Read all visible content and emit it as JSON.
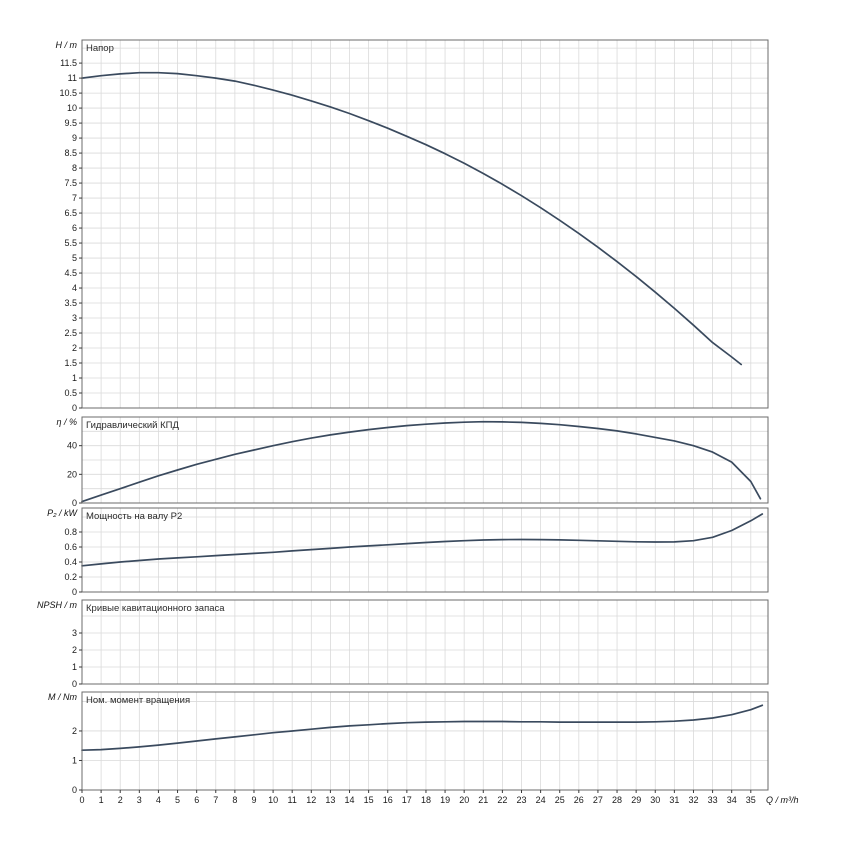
{
  "chart_data": {
    "type": "line",
    "colors": {
      "curve": "#3a4a5e",
      "grid": "#dadada",
      "frame": "#6b6b6b"
    },
    "x_axis": {
      "label": "Q / m³/h",
      "min": 0,
      "max": 35.9,
      "ticks": [
        0,
        1,
        2,
        3,
        4,
        5,
        6,
        7,
        8,
        9,
        10,
        11,
        12,
        13,
        14,
        15,
        16,
        17,
        18,
        19,
        20,
        21,
        22,
        23,
        24,
        25,
        26,
        27,
        28,
        29,
        30,
        31,
        32,
        33,
        34,
        35
      ]
    },
    "grid": true,
    "panels": [
      {
        "id": "head",
        "unit_label": "H / m",
        "title": "Напор",
        "ylim": [
          0,
          12.27
        ],
        "ygrid_step": 0.5,
        "yticks": [
          0,
          0.5,
          1,
          1.5,
          2,
          2.5,
          3,
          3.5,
          4,
          4.5,
          5,
          5.5,
          6,
          6.5,
          7,
          7.5,
          8,
          8.5,
          9,
          9.5,
          10,
          10.5,
          11,
          11.5
        ],
        "series": [
          {
            "name": "H",
            "x": [
              0,
              1,
              2,
              3,
              4,
              5,
              6,
              7,
              8,
              9,
              10,
              11,
              12,
              13,
              14,
              15,
              16,
              17,
              18,
              19,
              20,
              21,
              22,
              23,
              24,
              25,
              26,
              27,
              28,
              29,
              30,
              31,
              32,
              33,
              34,
              34.5
            ],
            "y": [
              11.0,
              11.08,
              11.14,
              11.18,
              11.18,
              11.15,
              11.08,
              11.0,
              10.9,
              10.76,
              10.6,
              10.43,
              10.24,
              10.04,
              9.82,
              9.58,
              9.33,
              9.06,
              8.78,
              8.48,
              8.16,
              7.82,
              7.46,
              7.08,
              6.68,
              6.26,
              5.82,
              5.36,
              4.88,
              4.38,
              3.86,
              3.32,
              2.76,
              2.18,
              1.7,
              1.45
            ]
          }
        ]
      },
      {
        "id": "efficiency",
        "unit_label": "η / %",
        "title": "Гидравлический КПД",
        "ylim": [
          0,
          60
        ],
        "ygrid_step": 10,
        "yticks": [
          0,
          20,
          40
        ],
        "series": [
          {
            "name": "eta",
            "x": [
              0,
              1,
              2,
              3,
              4,
              5,
              6,
              7,
              8,
              9,
              10,
              11,
              12,
              13,
              14,
              15,
              16,
              17,
              18,
              19,
              20,
              21,
              22,
              23,
              24,
              25,
              26,
              27,
              28,
              29,
              30,
              31,
              32,
              33,
              34,
              35,
              35.5
            ],
            "y": [
              1,
              5.5,
              10,
              14.5,
              19,
              23,
              27,
              30.5,
              34,
              37,
              40,
              42.8,
              45.3,
              47.5,
              49.5,
              51.2,
              52.7,
              54,
              55,
              55.8,
              56.4,
              56.7,
              56.6,
              56.2,
              55.5,
              54.6,
              53.4,
              52,
              50.3,
              48.2,
              45.8,
              43.3,
              40,
              35.5,
              28.5,
              15,
              3
            ]
          }
        ]
      },
      {
        "id": "power",
        "unit_label": "P₂ / kW",
        "title": "Мощность на валу P2",
        "ylim": [
          0,
          1.12
        ],
        "ygrid_step": 0.2,
        "yticks": [
          0,
          0.2,
          0.4,
          0.6,
          0.8
        ],
        "series": [
          {
            "name": "P2",
            "x": [
              0,
              1,
              2,
              3,
              4,
              5,
              6,
              7,
              8,
              9,
              10,
              11,
              12,
              13,
              14,
              15,
              16,
              17,
              18,
              19,
              20,
              21,
              22,
              23,
              24,
              25,
              26,
              27,
              28,
              29,
              30,
              31,
              32,
              33,
              34,
              35,
              35.6
            ],
            "y": [
              0.35,
              0.375,
              0.4,
              0.42,
              0.44,
              0.455,
              0.47,
              0.485,
              0.5,
              0.515,
              0.53,
              0.548,
              0.565,
              0.582,
              0.6,
              0.615,
              0.63,
              0.645,
              0.66,
              0.673,
              0.684,
              0.693,
              0.698,
              0.7,
              0.699,
              0.695,
              0.69,
              0.683,
              0.676,
              0.67,
              0.666,
              0.668,
              0.684,
              0.73,
              0.82,
              0.95,
              1.04
            ]
          }
        ]
      },
      {
        "id": "npsh",
        "unit_label": "NPSH / m",
        "title": "Кривые кавитационного запаса",
        "ylim": [
          0,
          4.94
        ],
        "ygrid_step": 1,
        "yticks": [
          0,
          1,
          2,
          3
        ],
        "series": []
      },
      {
        "id": "torque",
        "unit_label": "M / Nm",
        "title": "Ном. момент вращения",
        "ylim": [
          0,
          3.32
        ],
        "ygrid_step": 1,
        "yticks": [
          0,
          1,
          2
        ],
        "series": [
          {
            "name": "M",
            "x": [
              0,
              1,
              2,
              3,
              4,
              5,
              6,
              7,
              8,
              9,
              10,
              11,
              12,
              13,
              14,
              15,
              16,
              17,
              18,
              19,
              20,
              21,
              22,
              23,
              24,
              25,
              26,
              27,
              28,
              29,
              30,
              31,
              32,
              33,
              34,
              35,
              35.6
            ],
            "y": [
              1.35,
              1.37,
              1.41,
              1.46,
              1.52,
              1.59,
              1.66,
              1.73,
              1.8,
              1.87,
              1.94,
              2.0,
              2.06,
              2.12,
              2.17,
              2.21,
              2.25,
              2.28,
              2.3,
              2.31,
              2.32,
              2.32,
              2.32,
              2.31,
              2.31,
              2.3,
              2.3,
              2.3,
              2.3,
              2.3,
              2.31,
              2.33,
              2.37,
              2.44,
              2.55,
              2.72,
              2.87
            ]
          }
        ]
      }
    ]
  }
}
